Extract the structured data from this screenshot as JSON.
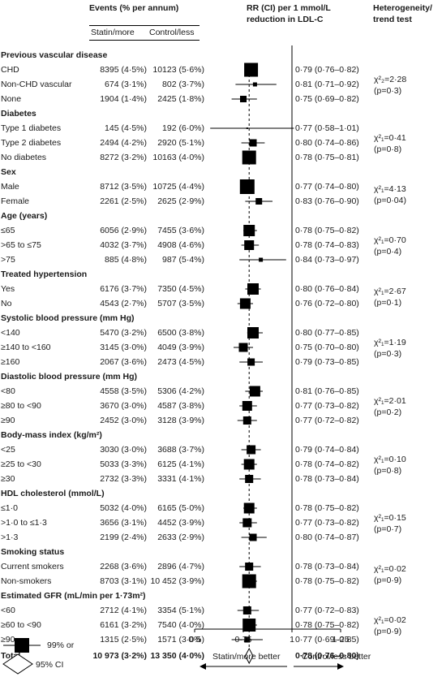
{
  "headers": {
    "events": "Events (% per annum)",
    "statin": "Statin/more",
    "control": "Control/less",
    "rr1": "RR (CI) per 1 mmol/L",
    "rr2": "reduction in LDL-C",
    "het1": "Heterogeneity/",
    "het2": "trend test"
  },
  "axis": {
    "ticks": [
      {
        "value": 0.5,
        "label": "0·5"
      },
      {
        "value": 0.75,
        "label": "0·75"
      },
      {
        "value": 1,
        "label": "1"
      },
      {
        "value": 1.25,
        "label": "1·25"
      }
    ],
    "xlim": [
      0.5,
      1.25
    ],
    "left_label": "Statin/more better",
    "right_label": "Control/less better"
  },
  "legend": {
    "square_label": "99% or",
    "diamond_label": "95% CI"
  },
  "chart_data": {
    "type": "forest",
    "null_line": 1,
    "overall_line": 0.78,
    "groups": [
      {
        "title": "Previous vascular disease",
        "het": [
          "χ²₂=2·28",
          "(p=0·3)"
        ],
        "rows": [
          {
            "label": "CHD",
            "statin": "8395 (4·5%)",
            "control": "10123 (5·6%)",
            "rr_text": "0·79 (0·76–0·82)",
            "rr": 0.79,
            "lo": 0.76,
            "hi": 0.82,
            "size": 17
          },
          {
            "label": "Non-CHD vascular",
            "statin": "674 (3·1%)",
            "control": "802 (3·7%)",
            "rr_text": "0·81 (0·71–0·92)",
            "rr": 0.81,
            "lo": 0.71,
            "hi": 0.92,
            "size": 5
          },
          {
            "label": "None",
            "statin": "1904 (1·4%)",
            "control": "2425 (1·8%)",
            "rr_text": "0·75 (0·69–0·82)",
            "rr": 0.75,
            "lo": 0.69,
            "hi": 0.82,
            "size": 8
          }
        ]
      },
      {
        "title": "Diabetes",
        "het": [
          "χ²₁=0·41",
          "(p=0·8)"
        ],
        "rows": [
          {
            "label": "Type 1 diabetes",
            "statin": "145 (4·5%)",
            "control": "192 (6·0%)",
            "rr_text": "0·77 (0·58–1·01)",
            "rr": 0.77,
            "lo": 0.58,
            "hi": 1.01,
            "size": 2
          },
          {
            "label": "Type 2 diabetes",
            "statin": "2494 (4·2%)",
            "control": "2920 (5·1%)",
            "rr_text": "0·80 (0·74–0·86)",
            "rr": 0.8,
            "lo": 0.74,
            "hi": 0.86,
            "size": 9
          },
          {
            "label": "No diabetes",
            "statin": "8272 (3·2%)",
            "control": "10163 (4·0%)",
            "rr_text": "0·78 (0·75–0·81)",
            "rr": 0.78,
            "lo": 0.75,
            "hi": 0.81,
            "size": 17
          }
        ]
      },
      {
        "title": "Sex",
        "het": [
          "χ²₁=4·13",
          "(p=0·04)"
        ],
        "rows": [
          {
            "label": "Male",
            "statin": "8712 (3·5%)",
            "control": "10725 (4·4%)",
            "rr_text": "0·77 (0·74–0·80)",
            "rr": 0.77,
            "lo": 0.74,
            "hi": 0.8,
            "size": 18
          },
          {
            "label": "Female",
            "statin": "2261 (2·5%)",
            "control": "2625 (2·9%)",
            "rr_text": "0·83 (0·76–0·90)",
            "rr": 0.83,
            "lo": 0.76,
            "hi": 0.9,
            "size": 8
          }
        ]
      },
      {
        "title": "Age (years)",
        "het": [
          "χ²₁=0·70",
          "(p=0·4)"
        ],
        "rows": [
          {
            "label": "≤65",
            "statin": "6056 (2·9%)",
            "control": "7455 (3·6%)",
            "rr_text": "0·78 (0·75–0·82)",
            "rr": 0.78,
            "lo": 0.75,
            "hi": 0.82,
            "size": 14
          },
          {
            "label": ">65 to ≤75",
            "statin": "4032 (3·7%)",
            "control": "4908 (4·6%)",
            "rr_text": "0·78 (0·74–0·83)",
            "rr": 0.78,
            "lo": 0.74,
            "hi": 0.83,
            "size": 12
          },
          {
            "label": ">75",
            "statin": "885 (4·8%)",
            "control": "987 (5·4%)",
            "rr_text": "0·84 (0·73–0·97)",
            "rr": 0.84,
            "lo": 0.73,
            "hi": 0.97,
            "size": 5
          }
        ]
      },
      {
        "title": "Treated hypertension",
        "het": [
          "χ²₁=2·67",
          "(p=0·1)"
        ],
        "rows": [
          {
            "label": "Yes",
            "statin": "6176 (3·7%)",
            "control": "7350 (4·5%)",
            "rr_text": "0·80 (0·76–0·84)",
            "rr": 0.8,
            "lo": 0.76,
            "hi": 0.84,
            "size": 14
          },
          {
            "label": "No",
            "statin": "4543 (2·7%)",
            "control": "5707 (3·5%)",
            "rr_text": "0·76 (0·72–0·80)",
            "rr": 0.76,
            "lo": 0.72,
            "hi": 0.8,
            "size": 13
          }
        ]
      },
      {
        "title": "Systolic blood pressure (mm Hg)",
        "het": [
          "χ²₁=1·19",
          "(p=0·3)"
        ],
        "rows": [
          {
            "label": "<140",
            "statin": "5470 (3·2%)",
            "control": "6500 (3·8%)",
            "rr_text": "0·80 (0·77–0·85)",
            "rr": 0.8,
            "lo": 0.77,
            "hi": 0.85,
            "size": 14
          },
          {
            "label": "≥140 to <160",
            "statin": "3145 (3·0%)",
            "control": "4049 (3·9%)",
            "rr_text": "0·75 (0·70–0·80)",
            "rr": 0.75,
            "lo": 0.7,
            "hi": 0.8,
            "size": 11
          },
          {
            "label": "≥160",
            "statin": "2067 (3·6%)",
            "control": "2473 (4·5%)",
            "rr_text": "0·79 (0·73–0·85)",
            "rr": 0.79,
            "lo": 0.73,
            "hi": 0.85,
            "size": 9
          }
        ]
      },
      {
        "title": "Diastolic blood pressure (mm Hg)",
        "het": [
          "χ²₁=2·01",
          "(p=0·2)"
        ],
        "rows": [
          {
            "label": "<80",
            "statin": "4558 (3·5%)",
            "control": "5306 (4·2%)",
            "rr_text": "0·81 (0·76–0·85)",
            "rr": 0.81,
            "lo": 0.76,
            "hi": 0.85,
            "size": 13
          },
          {
            "label": "≥80 to <90",
            "statin": "3670 (3·0%)",
            "control": "4587 (3·8%)",
            "rr_text": "0·77 (0·73–0·82)",
            "rr": 0.77,
            "lo": 0.73,
            "hi": 0.82,
            "size": 12
          },
          {
            "label": "≥90",
            "statin": "2452 (3·0%)",
            "control": "3128 (3·9%)",
            "rr_text": "0·77 (0·72–0·82)",
            "rr": 0.77,
            "lo": 0.72,
            "hi": 0.82,
            "size": 10
          }
        ]
      },
      {
        "title": "Body-mass index (kg/m²)",
        "het": [
          "χ²₁=0·10",
          "(p=0·8)"
        ],
        "rows": [
          {
            "label": "<25",
            "statin": "3030 (3·0%)",
            "control": "3688 (3·7%)",
            "rr_text": "0·79 (0·74–0·84)",
            "rr": 0.79,
            "lo": 0.74,
            "hi": 0.84,
            "size": 11
          },
          {
            "label": "≥25 to <30",
            "statin": "5033 (3·3%)",
            "control": "6125 (4·1%)",
            "rr_text": "0·78 (0·74–0·82)",
            "rr": 0.78,
            "lo": 0.74,
            "hi": 0.82,
            "size": 13
          },
          {
            "label": "≥30",
            "statin": "2732 (3·3%)",
            "control": "3331 (4·1%)",
            "rr_text": "0·78 (0·73–0·84)",
            "rr": 0.78,
            "lo": 0.73,
            "hi": 0.84,
            "size": 10
          }
        ]
      },
      {
        "title": "HDL cholesterol (mmol/L)",
        "het": [
          "χ²₁=0·15",
          "(p=0·7)"
        ],
        "rows": [
          {
            "label": "≤1·0",
            "statin": "5032 (4·0%)",
            "control": "6165 (5·0%)",
            "rr_text": "0·78 (0·75–0·82)",
            "rr": 0.78,
            "lo": 0.75,
            "hi": 0.82,
            "size": 13
          },
          {
            "label": ">1·0 to ≤1·3",
            "statin": "3656 (3·1%)",
            "control": "4452 (3·9%)",
            "rr_text": "0·77 (0·73–0·82)",
            "rr": 0.77,
            "lo": 0.73,
            "hi": 0.82,
            "size": 11
          },
          {
            "label": ">1·3",
            "statin": "2199 (2·4%)",
            "control": "2633 (2·9%)",
            "rr_text": "0·80 (0·74–0·87)",
            "rr": 0.8,
            "lo": 0.74,
            "hi": 0.87,
            "size": 9
          }
        ]
      },
      {
        "title": "Smoking status",
        "het": [
          "χ²₁=0·02",
          "(p=0·9)"
        ],
        "rows": [
          {
            "label": "Current smokers",
            "statin": "2268 (3·6%)",
            "control": "2896 (4·7%)",
            "rr_text": "0·78 (0·73–0·84)",
            "rr": 0.78,
            "lo": 0.73,
            "hi": 0.84,
            "size": 10
          },
          {
            "label": "Non-smokers",
            "statin": "8703 (3·1%)",
            "control": "10 452 (3·9%)",
            "rr_text": "0·78 (0·75–0·82)",
            "rr": 0.78,
            "lo": 0.75,
            "hi": 0.82,
            "size": 17
          }
        ]
      },
      {
        "title": "Estimated GFR (mL/min per 1·73m²)",
        "het": [
          "χ²₁=0·02",
          "(p=0·9)"
        ],
        "rows": [
          {
            "label": "<60",
            "statin": "2712 (4·1%)",
            "control": "3354 (5·1%)",
            "rr_text": "0·77 (0·72–0·83)",
            "rr": 0.77,
            "lo": 0.72,
            "hi": 0.83,
            "size": 10
          },
          {
            "label": "≥60 to <90",
            "statin": "6161 (3·2%)",
            "control": "7540 (4·0%)",
            "rr_text": "0·78 (0·75–0·82)",
            "rr": 0.78,
            "lo": 0.75,
            "hi": 0.82,
            "size": 16
          },
          {
            "label": "≥90",
            "statin": "1315 (2·5%)",
            "control": "1571 (3·0%)",
            "rr_text": "0·77 (0·69–0·85)",
            "rr": 0.77,
            "lo": 0.69,
            "hi": 0.85,
            "size": 7
          }
        ]
      }
    ],
    "total": {
      "label": "Total",
      "statin": "10 973 (3·2%)",
      "control": "13 350 (4·0%)",
      "rr_text": "0·78 (0·76–0·80)",
      "rr": 0.78,
      "lo": 0.76,
      "hi": 0.8
    }
  }
}
